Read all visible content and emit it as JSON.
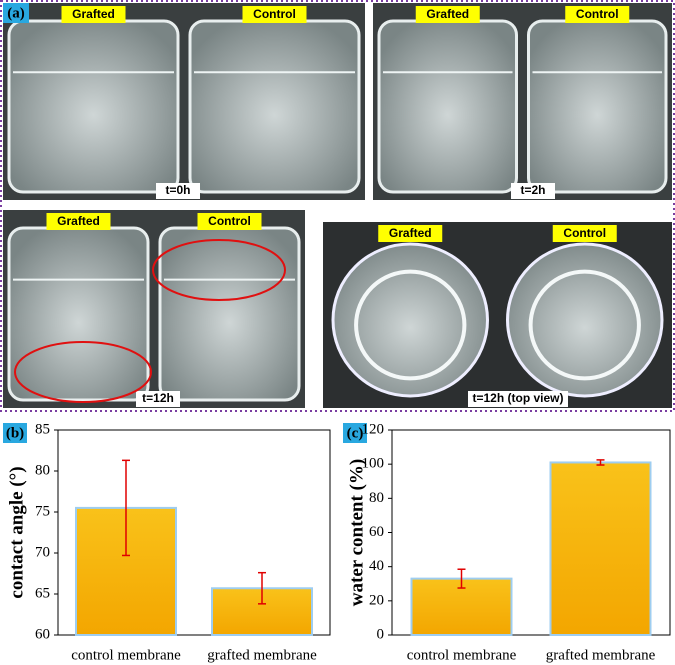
{
  "panel_a": {
    "label": "(a)",
    "photos": [
      {
        "left": "Grafted",
        "right": "Control",
        "time": "t=0h"
      },
      {
        "left": "Grafted",
        "right": "Control",
        "time": "t=2h"
      },
      {
        "left": "Grafted",
        "right": "Control",
        "time": "t=12h"
      },
      {
        "left": "Grafted",
        "right": "Control",
        "time": "t=12h (top view)"
      }
    ]
  },
  "chart_data": [
    {
      "type": "bar",
      "panel": "(b)",
      "ylabel": "contact angle (°)",
      "categories": [
        "control membrane",
        "grafted membrane"
      ],
      "values": [
        75.5,
        65.7
      ],
      "errors": [
        5.8,
        1.9
      ],
      "color": "#f7b800",
      "error_color": "#e00000",
      "ylim": [
        60,
        85
      ],
      "yticks": [
        60,
        65,
        70,
        75,
        80,
        85
      ]
    },
    {
      "type": "bar",
      "panel": "(c)",
      "ylabel": "water content (%)",
      "categories": [
        "control membrane",
        "grafted membrane"
      ],
      "values": [
        33,
        101
      ],
      "errors": [
        5.5,
        1.5
      ],
      "color": "#f7b800",
      "error_color": "#e00000",
      "ylim": [
        0,
        120
      ],
      "yticks": [
        0,
        20,
        40,
        60,
        80,
        100,
        120
      ]
    }
  ]
}
